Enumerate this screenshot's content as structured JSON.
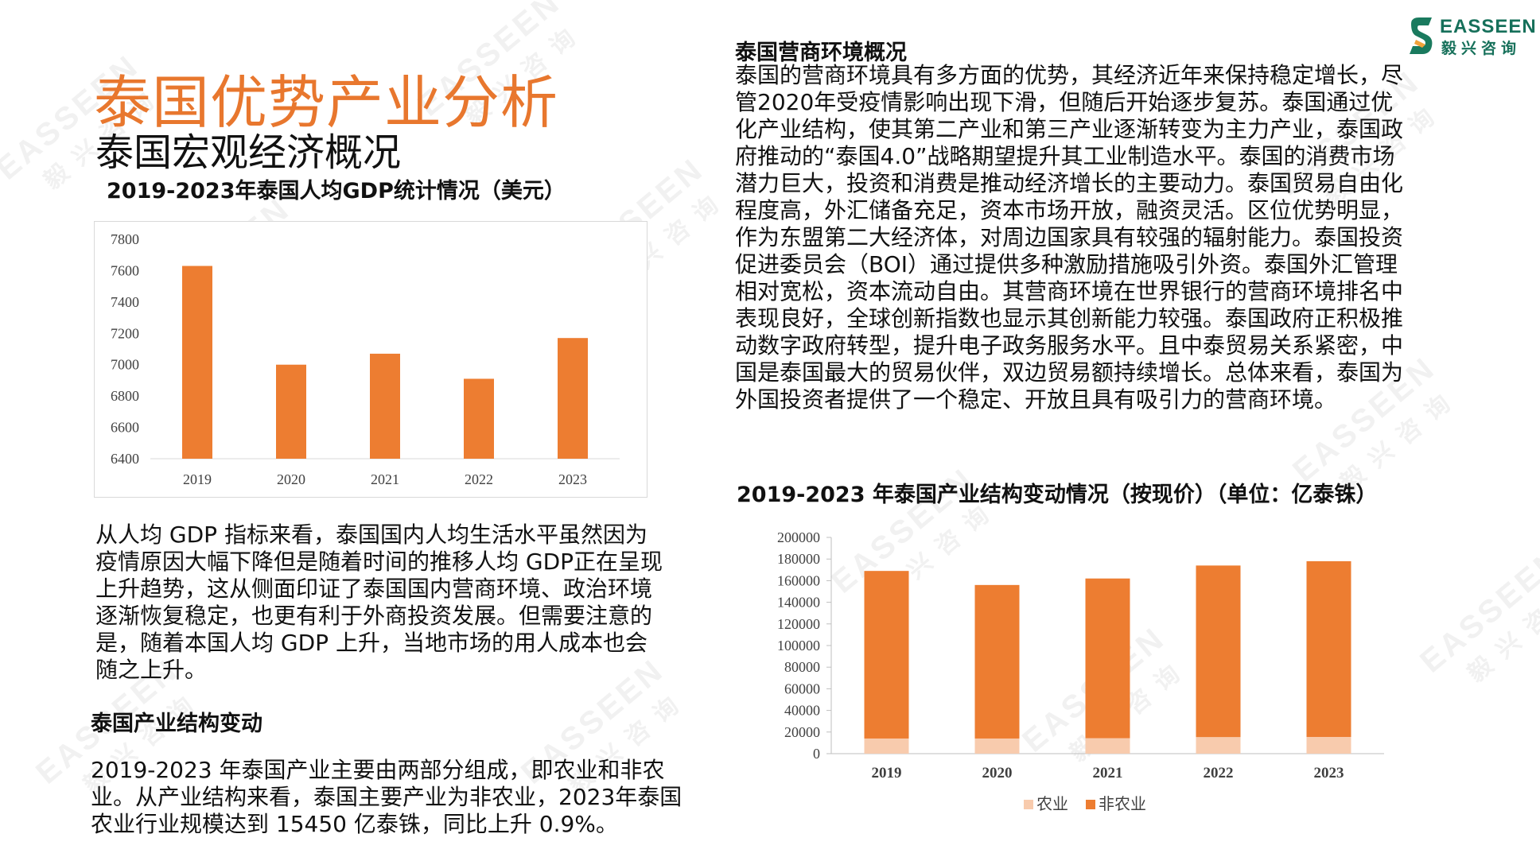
{
  "logo": {
    "en": "EASSEEN",
    "cn": "毅兴咨询"
  },
  "watermark": {
    "en": "EASSEEN",
    "cn": "毅兴咨询"
  },
  "header": {
    "title": "泰国优势产业分析",
    "subtitle": "泰国宏观经济概况"
  },
  "gdp_chart": {
    "title": "2019-2023年泰国人均GDP统计情况（美元）"
  },
  "gdp_paragraph": "从人均 GDP 指标来看，泰国国内人均生活水平虽然因为疫情原因大幅下降但是随着时间的推移人均 GDP正在呈现上升趋势，这从侧面印证了泰国国内营商环境、政治环境逐渐恢复稳定，也更有利于外商投资发展。但需要注意的是，随着本国人均 GDP 上升，当地市场的用人成本也会随之上升。",
  "industry_section": {
    "heading": "泰国产业结构变动",
    "paragraph": "2019-2023 年泰国产业主要由两部分组成，即农业和非农业。从产业结构来看，泰国主要产业为非农业，2023年泰国农业行业规模达到 15450 亿泰铢，同比上升 0.9%。"
  },
  "business_env": {
    "heading": "泰国营商环境概况",
    "paragraph": "泰国的营商环境具有多方面的优势，其经济近年来保持稳定增长，尽管2020年受疫情影响出现下滑，但随后开始逐步复苏。泰国通过优化产业结构，使其第二产业和第三产业逐渐转变为主力产业，泰国政府推动的“泰国4.0”战略期望提升其工业制造水平。泰国的消费市场潜力巨大，投资和消费是推动经济增长的主要动力。泰国贸易自由化程度高，外汇储备充足，资本市场开放，融资灵活。区位优势明显，作为东盟第二大经济体，对周边国家具有较强的辐射能力。泰国投资促进委员会（BOI）通过提供多种激励措施吸引外资。泰国外汇管理相对宽松，资本流动自由。其营商环境在世界银行的营商环境排名中表现良好，全球创新指数也显示其创新能力较强。泰国政府正积极推动数字政府转型，提升电子政务服务水平。且中泰贸易关系紧密，中国是泰国最大的贸易伙伴，双边贸易额持续增长。总体来看，泰国为外国投资者提供了一个稳定、开放且具有吸引力的营商环境。"
  },
  "structure_chart": {
    "title": "2019-2023 年泰国产业结构变动情况（按现价）（单位：亿泰铢）"
  },
  "colors": {
    "accent": "#ED7D31",
    "light": "#F8CBAD"
  },
  "chart_data": [
    {
      "type": "bar",
      "title": "2019-2023年泰国人均GDP统计情况（美元）",
      "categories": [
        "2019",
        "2020",
        "2021",
        "2022",
        "2023"
      ],
      "values": [
        7630,
        7000,
        7070,
        6910,
        7170
      ],
      "ylim": [
        6400,
        7800
      ],
      "yticks": [
        "7800",
        "7600",
        "7400",
        "7200",
        "7000",
        "6800",
        "6600",
        "6400"
      ],
      "grid": false,
      "legend": "none",
      "color": "#ED7D31"
    },
    {
      "type": "bar",
      "stacked": true,
      "title": "2019-2023 年泰国产业结构变动情况（按现价）（单位：亿泰铢）",
      "categories": [
        "2019",
        "2020",
        "2021",
        "2022",
        "2023"
      ],
      "series": [
        {
          "name": "农业",
          "values": [
            14000,
            14000,
            14300,
            15300,
            15450
          ],
          "color": "#F8CBAD"
        },
        {
          "name": "非农业",
          "values": [
            155000,
            142000,
            147700,
            158700,
            162550
          ],
          "color": "#ED7D31"
        }
      ],
      "ylim": [
        0,
        200000
      ],
      "yticks": [
        "200000",
        "180000",
        "160000",
        "140000",
        "120000",
        "100000",
        "80000",
        "60000",
        "40000",
        "20000",
        "0"
      ],
      "grid": false,
      "legend": "bottom"
    }
  ]
}
